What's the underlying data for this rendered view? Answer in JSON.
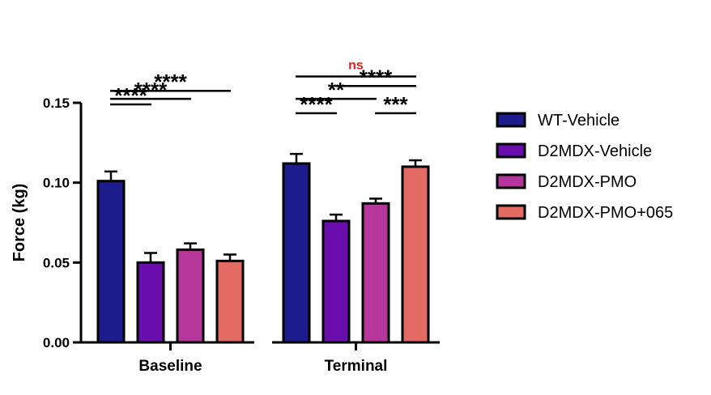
{
  "chart_data": {
    "type": "bar",
    "title": "",
    "xlabel": "",
    "ylabel": "Force (kg)",
    "ylim": [
      0,
      0.15
    ],
    "yticks": [
      0.0,
      0.05,
      0.1,
      0.15
    ],
    "ytick_labels": [
      "0.00",
      "0.05",
      "0.10",
      "0.15"
    ],
    "categories": [
      "Baseline",
      "Terminal"
    ],
    "series": [
      {
        "name": "WT-Vehicle",
        "color": "#1c1c8c",
        "values": [
          0.101,
          0.112
        ],
        "errors": [
          0.006,
          0.006
        ]
      },
      {
        "name": "D2MDX-Vehicle",
        "color": "#6a0dad",
        "values": [
          0.05,
          0.076
        ],
        "errors": [
          0.006,
          0.004
        ]
      },
      {
        "name": "D2MDX-PMO",
        "color": "#b5379c",
        "values": [
          0.058,
          0.087
        ],
        "errors": [
          0.004,
          0.003
        ]
      },
      {
        "name": "D2MDX-PMO+065",
        "color": "#e46a64",
        "values": [
          0.051,
          0.11
        ],
        "errors": [
          0.004,
          0.004
        ]
      }
    ],
    "legend_position": "right",
    "significance": [
      {
        "category": "Baseline",
        "from_series": 0,
        "to_series": 1,
        "label": "****",
        "level": 0.149
      },
      {
        "category": "Baseline",
        "from_series": 0,
        "to_series": 2,
        "label": "****",
        "level": 0.1525
      },
      {
        "category": "Baseline",
        "from_series": 0,
        "to_series": 3,
        "label": "****",
        "level": 0.1575
      },
      {
        "category": "Terminal",
        "from_series": 0,
        "to_series": 1,
        "label": "****",
        "level": 0.1435
      },
      {
        "category": "Terminal",
        "from_series": 0,
        "to_series": 2,
        "label": "**",
        "level": 0.1525
      },
      {
        "category": "Terminal",
        "from_series": 2,
        "to_series": 3,
        "label": "***",
        "level": 0.1435
      },
      {
        "category": "Terminal",
        "from_series": 1,
        "to_series": 3,
        "label": "****",
        "level": 0.1605
      },
      {
        "category": "Terminal",
        "from_series": 0,
        "to_series": 3,
        "label": "ns",
        "level": 0.1665,
        "color": "#e0201c"
      }
    ]
  }
}
